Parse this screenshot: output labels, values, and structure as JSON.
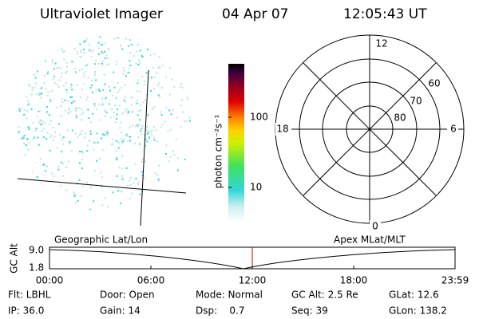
{
  "header": {
    "instrument": "Ultraviolet Imager",
    "date": "04 Apr 07",
    "time": "12:05:43 UT"
  },
  "colorbar": {
    "label": "photon cm⁻²s⁻¹",
    "ticks": [
      "100",
      "10"
    ]
  },
  "polar": {
    "mlt_labels": {
      "top": "12",
      "right": "6",
      "bottom": "0",
      "left": "18"
    },
    "lat_labels": [
      "60",
      "70",
      "80"
    ]
  },
  "altitude_panel": {
    "left_title": "Geographic Lat/Lon",
    "right_title": "Apex MLat/MLT",
    "y_label": "GC Alt",
    "y_ticks": [
      "9.0",
      "1.8"
    ],
    "x_ticks": [
      "00:00",
      "06:00",
      "12:00",
      "18:00",
      "23:59"
    ]
  },
  "info": {
    "rows": [
      [
        "Flt: LBHL",
        "Door: Open",
        "Mode: Normal",
        "GC Alt: 2.5 Re",
        "GLat: 12.6"
      ],
      [
        "IP: 36.0",
        "Gain: 14",
        "Dsp:    0.7",
        "Seq: 39",
        "GLon: 138.2"
      ]
    ]
  }
}
